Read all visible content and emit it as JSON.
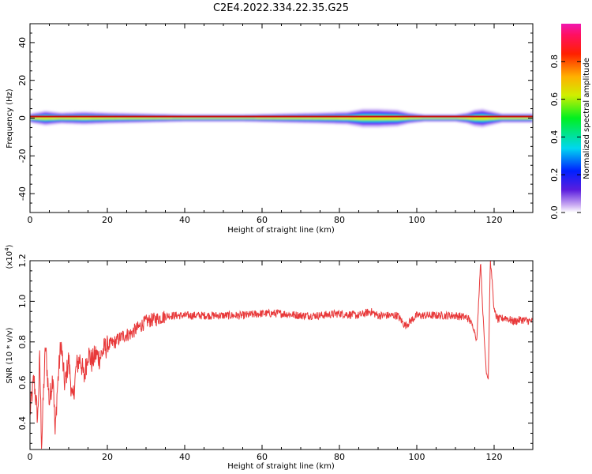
{
  "title": "C2E4.2022.334.22.35.G25",
  "chart_data": [
    {
      "type": "heatmap",
      "xlabel": "Height of straight line (km)",
      "ylabel": "Frequency (Hz)",
      "xlim": [
        0,
        130
      ],
      "ylim": [
        -50,
        50
      ],
      "x_ticks": [
        0,
        20,
        40,
        60,
        80,
        100,
        120
      ],
      "y_ticks": [
        -40,
        -20,
        0,
        20,
        40
      ],
      "colorbar": {
        "label": "Normalized spectral amplitude",
        "range": [
          0,
          1
        ],
        "ticks": [
          "0.0",
          "0.2",
          "0.4",
          "0.6",
          "0.8"
        ],
        "colormap": "rainbow (blue-cyan-green-yellow-red-magenta)"
      },
      "features": {
        "center_frequency_hz": 0,
        "typical_halfwidth_hz": 1.5,
        "broad_envelope_x": [
          0,
          4,
          8,
          14,
          20,
          30,
          40,
          55,
          65,
          75,
          82,
          86,
          90,
          95,
          98,
          102,
          110,
          113,
          115,
          117,
          119,
          122,
          130
        ],
        "broad_envelope_halfwidth_hz": [
          2.5,
          4,
          3,
          3.5,
          3,
          2.5,
          2,
          2,
          2.5,
          3,
          3.5,
          5,
          5,
          4.5,
          3,
          2,
          2,
          3,
          4.5,
          5,
          4,
          2.5,
          2.5
        ]
      }
    },
    {
      "type": "line",
      "xlabel": "Height of straight line (km)",
      "ylabel": "SNR (10 * v/v)",
      "y_multiplier": "(x10^4)",
      "xlim": [
        0,
        130
      ],
      "ylim": [
        0.27,
        1.2
      ],
      "x_ticks": [
        0,
        20,
        40,
        60,
        80,
        100,
        120
      ],
      "y_ticks": [
        "0.4",
        "0.6",
        "0.8",
        "1.0",
        "1.2"
      ],
      "series": [
        {
          "color": "#e8393a",
          "x": [
            0,
            1,
            2,
            2.5,
            3,
            3.5,
            4,
            5,
            6,
            6.5,
            7,
            8,
            9,
            10,
            11,
            12,
            13,
            14,
            15,
            16,
            17,
            18,
            19,
            20,
            22,
            24,
            26,
            28,
            30,
            32,
            34,
            36,
            38,
            40,
            45,
            50,
            55,
            60,
            65,
            70,
            75,
            80,
            85,
            88,
            90,
            92,
            95,
            97,
            100,
            105,
            110,
            113,
            114,
            115,
            115.5,
            116,
            116.5,
            117,
            117.5,
            118,
            118.5,
            119,
            119.5,
            120,
            121,
            123,
            125,
            127,
            130
          ],
          "values": [
            0.45,
            0.62,
            0.42,
            0.72,
            0.29,
            0.55,
            0.78,
            0.5,
            0.65,
            0.34,
            0.55,
            0.8,
            0.58,
            0.72,
            0.5,
            0.68,
            0.72,
            0.62,
            0.75,
            0.7,
            0.74,
            0.72,
            0.76,
            0.78,
            0.8,
            0.83,
            0.84,
            0.87,
            0.9,
            0.91,
            0.92,
            0.93,
            0.93,
            0.93,
            0.93,
            0.93,
            0.93,
            0.94,
            0.94,
            0.93,
            0.93,
            0.94,
            0.93,
            0.95,
            0.93,
            0.93,
            0.93,
            0.88,
            0.93,
            0.93,
            0.93,
            0.92,
            0.9,
            0.85,
            0.8,
            1.0,
            1.2,
            0.98,
            0.8,
            0.65,
            0.62,
            1.2,
            1.1,
            0.95,
            0.91,
            0.92,
            0.9,
            0.91,
            0.9
          ]
        }
      ]
    }
  ]
}
